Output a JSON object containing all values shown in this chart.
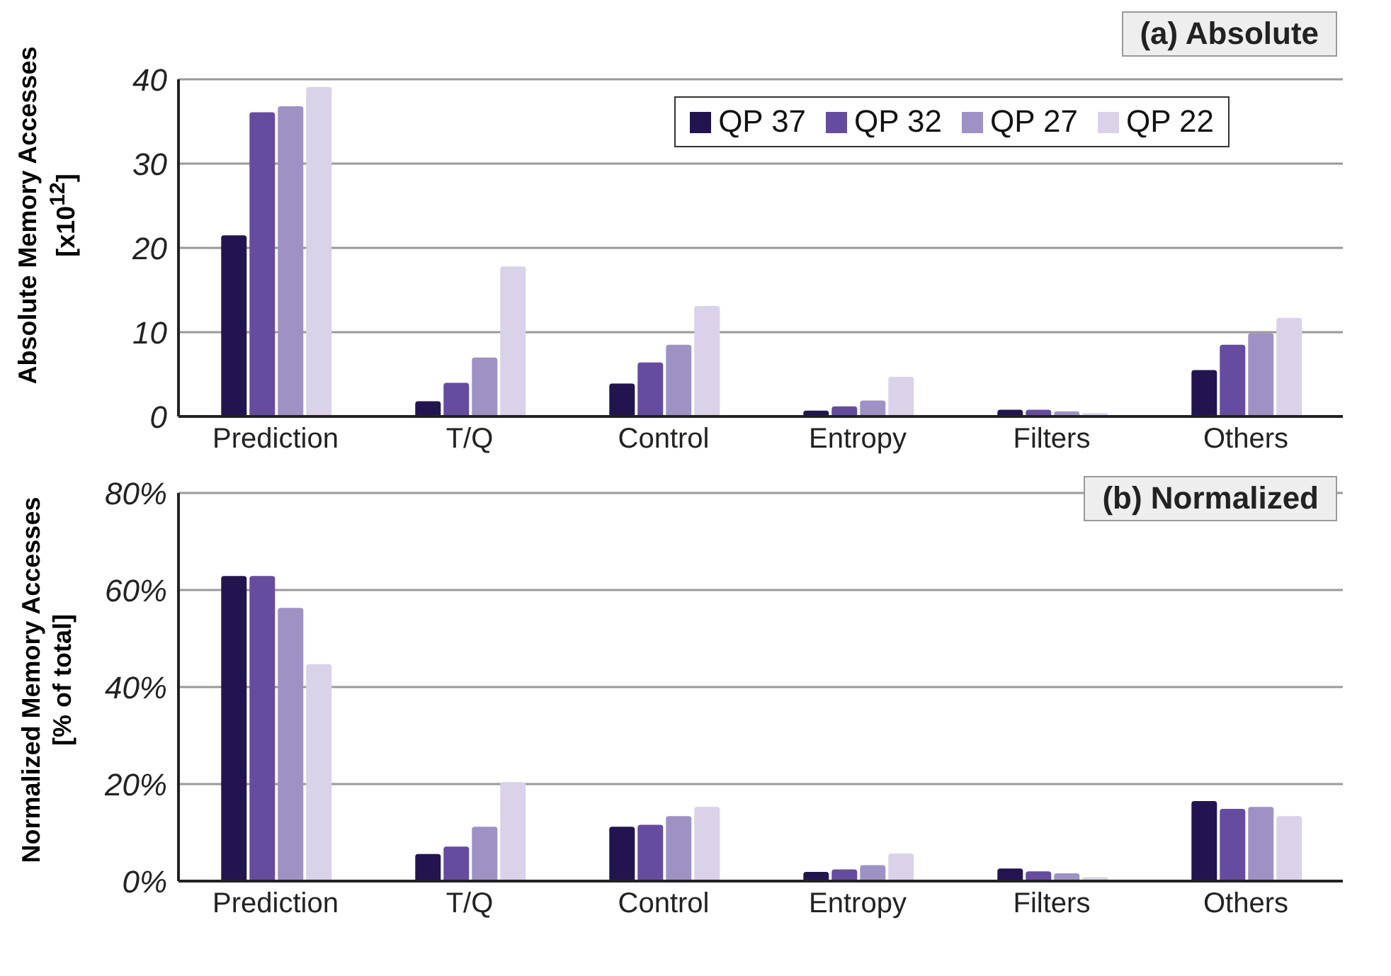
{
  "chart_data": [
    {
      "type": "bar",
      "title": "(a) Absolute",
      "ylabel": "Absolute Memory Accesses [x10$^{12}$]",
      "categories": [
        "Prediction",
        "T/Q",
        "Control",
        "Entropy",
        "Filters",
        "Others"
      ],
      "series": [
        {
          "name": "QP 37",
          "color": "#22154f",
          "values": [
            21.5,
            1.8,
            3.9,
            0.7,
            0.8,
            5.5
          ]
        },
        {
          "name": "QP 32",
          "color": "#664c9f",
          "values": [
            36.1,
            4.0,
            6.4,
            1.2,
            0.8,
            8.5
          ]
        },
        {
          "name": "QP 27",
          "color": "#9e92c4",
          "values": [
            36.8,
            7.0,
            8.5,
            1.9,
            0.6,
            9.9
          ]
        },
        {
          "name": "QP 22",
          "color": "#d9d2e9",
          "values": [
            39.1,
            17.8,
            13.1,
            4.7,
            0.4,
            11.7
          ]
        }
      ],
      "ylim": [
        0,
        40
      ],
      "yticks": [
        0,
        10,
        20,
        30,
        40
      ],
      "grid": "y",
      "legend": "top right"
    },
    {
      "type": "bar",
      "title": "(b) Normalized",
      "ylabel": "Normalized Memory Accesses [% of total]",
      "categories": [
        "Prediction",
        "T/Q",
        "Control",
        "Entropy",
        "Filters",
        "Others"
      ],
      "series": [
        {
          "color": "#22154f",
          "values": [
            62.9,
            5.6,
            11.2,
            1.9,
            2.6,
            16.5
          ]
        },
        {
          "color": "#664c9f",
          "values": [
            62.9,
            7.1,
            11.6,
            2.4,
            2.0,
            14.9
          ]
        },
        {
          "color": "#9e92c4",
          "values": [
            56.3,
            11.2,
            13.4,
            3.3,
            1.6,
            15.3
          ]
        },
        {
          "color": "#d9d2e9",
          "values": [
            44.7,
            20.4,
            15.3,
            5.7,
            0.8,
            13.4
          ]
        }
      ],
      "ylim": [
        0,
        80
      ],
      "yticks": [
        {
          "value": 0,
          "label": "0%"
        },
        {
          "value": 20,
          "label": "20%"
        },
        {
          "value": 40,
          "label": "40%"
        },
        {
          "value": 60,
          "label": "60%"
        },
        {
          "value": 80,
          "label": "80%"
        }
      ],
      "grid": "y",
      "legend": false
    }
  ]
}
